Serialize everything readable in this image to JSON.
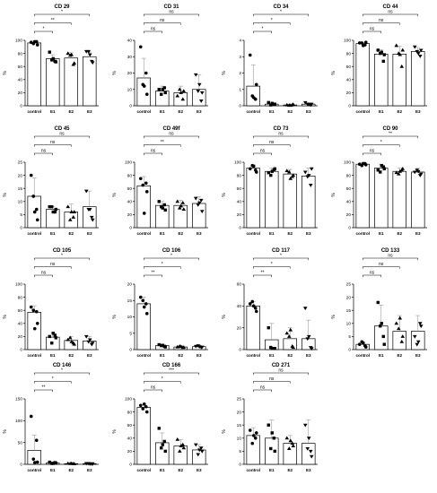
{
  "figure": {
    "ylabel": "%"
  },
  "chart_data": [
    {
      "type": "bar",
      "title": "CD 29",
      "categories": [
        "control",
        "E1",
        "E2",
        "E3"
      ],
      "ylim": [
        0,
        100
      ],
      "yticks": [
        0,
        20,
        40,
        60,
        80,
        100
      ],
      "values": [
        96,
        72,
        73,
        75
      ],
      "errors": [
        3,
        6,
        8,
        7
      ],
      "points": [
        [
          97,
          98,
          95,
          93,
          98
        ],
        [
          82,
          68,
          70,
          67,
          72
        ],
        [
          80,
          63,
          77,
          65,
          78
        ],
        [
          83,
          68,
          83,
          66,
          78
        ]
      ],
      "comparisons": [
        {
          "from": 0,
          "to": 1,
          "label": "*"
        },
        {
          "from": 0,
          "to": 2,
          "label": "**"
        },
        {
          "from": 0,
          "to": 3,
          "label": "*"
        }
      ]
    },
    {
      "type": "bar",
      "title": "CD 31",
      "categories": [
        "control",
        "E1",
        "E2",
        "E3"
      ],
      "ylim": [
        0,
        40
      ],
      "yticks": [
        0,
        10,
        20,
        30,
        40
      ],
      "values": [
        17,
        9,
        8,
        10
      ],
      "errors": [
        12,
        3,
        4,
        9
      ],
      "points": [
        [
          36,
          20,
          13,
          7,
          12
        ],
        [
          10,
          11,
          7,
          8,
          10
        ],
        [
          6,
          4,
          10,
          9,
          8
        ],
        [
          19,
          3,
          9,
          8,
          13
        ]
      ],
      "comparisons": [
        {
          "from": 0,
          "to": 1,
          "label": "ns"
        },
        {
          "from": 0,
          "to": 2,
          "label": "ns"
        },
        {
          "from": 0,
          "to": 3,
          "label": "ns"
        }
      ]
    },
    {
      "type": "bar",
      "title": "CD 34",
      "categories": [
        "control",
        "E1",
        "E2",
        "E3"
      ],
      "ylim": [
        0,
        4
      ],
      "yticks": [
        0,
        1,
        2,
        3,
        4
      ],
      "values": [
        1.2,
        0.1,
        0.05,
        0.1
      ],
      "errors": [
        1.3,
        0.08,
        0.05,
        0.08
      ],
      "points": [
        [
          3.1,
          0.4,
          0.6,
          1.3,
          0.5
        ],
        [
          0.2,
          0.1,
          0.05,
          0.1,
          0.15
        ],
        [
          0.05,
          0.05,
          0.03,
          0.08,
          0.02
        ],
        [
          0.2,
          0.05,
          0.1,
          0.1,
          0.08
        ]
      ],
      "comparisons": [
        {
          "from": 0,
          "to": 1,
          "label": "*"
        },
        {
          "from": 0,
          "to": 2,
          "label": "*"
        },
        {
          "from": 0,
          "to": 3,
          "label": "*"
        }
      ]
    },
    {
      "type": "bar",
      "title": "CD 44",
      "categories": [
        "control",
        "E1",
        "E2",
        "E3"
      ],
      "ylim": [
        0,
        100
      ],
      "yticks": [
        0,
        20,
        40,
        60,
        80,
        100
      ],
      "values": [
        95,
        79,
        79,
        83
      ],
      "errors": [
        2,
        7,
        12,
        6
      ],
      "points": [
        [
          96,
          93,
          96,
          97,
          92
        ],
        [
          85,
          68,
          80,
          78,
          82
        ],
        [
          92,
          60,
          80,
          85,
          78
        ],
        [
          90,
          76,
          83,
          85,
          80
        ]
      ],
      "comparisons": [
        {
          "from": 0,
          "to": 1,
          "label": "ns"
        },
        {
          "from": 0,
          "to": 2,
          "label": "ns"
        },
        {
          "from": 0,
          "to": 3,
          "label": "ns"
        }
      ]
    },
    {
      "type": "bar",
      "title": "CD 45",
      "categories": [
        "control",
        "E1",
        "E2",
        "E3"
      ],
      "ylim": [
        0,
        25
      ],
      "yticks": [
        0,
        5,
        10,
        15,
        20,
        25
      ],
      "values": [
        12,
        7,
        6,
        8
      ],
      "errors": [
        7,
        1,
        3,
        6
      ],
      "points": [
        [
          20,
          7,
          12,
          3,
          6
        ],
        [
          8,
          6,
          8,
          7,
          6
        ],
        [
          8,
          4,
          3,
          6,
          6
        ],
        [
          14,
          4,
          7,
          3,
          7
        ]
      ],
      "comparisons": [
        {
          "from": 0,
          "to": 1,
          "label": "ns"
        },
        {
          "from": 0,
          "to": 2,
          "label": "ns"
        },
        {
          "from": 0,
          "to": 3,
          "label": "ns"
        }
      ]
    },
    {
      "type": "bar",
      "title": "CD 49f",
      "categories": [
        "control",
        "E1",
        "E2",
        "E3"
      ],
      "ylim": [
        0,
        100
      ],
      "yticks": [
        0,
        20,
        40,
        60,
        80,
        100
      ],
      "values": [
        64,
        34,
        34,
        37
      ],
      "errors": [
        14,
        6,
        8,
        10
      ],
      "points": [
        [
          75,
          68,
          65,
          55,
          22
        ],
        [
          40,
          35,
          32,
          27,
          30
        ],
        [
          40,
          38,
          30,
          28,
          33
        ],
        [
          45,
          42,
          35,
          25,
          38
        ]
      ],
      "comparisons": [
        {
          "from": 0,
          "to": 1,
          "label": "ns"
        },
        {
          "from": 0,
          "to": 2,
          "label": "**"
        },
        {
          "from": 0,
          "to": 3,
          "label": "ns"
        }
      ]
    },
    {
      "type": "bar",
      "title": "CD 73",
      "categories": [
        "control",
        "E1",
        "E2",
        "E3"
      ],
      "ylim": [
        0,
        100
      ],
      "yticks": [
        0,
        20,
        40,
        60,
        80,
        100
      ],
      "values": [
        91,
        86,
        82,
        79
      ],
      "errors": [
        5,
        5,
        7,
        12
      ],
      "points": [
        [
          90,
          88,
          95,
          85,
          94
        ],
        [
          84,
          88,
          80,
          90,
          86
        ],
        [
          87,
          78,
          85,
          80,
          75
        ],
        [
          85,
          65,
          78,
          90,
          80
        ]
      ],
      "comparisons": [
        {
          "from": 0,
          "to": 1,
          "label": "ns"
        },
        {
          "from": 0,
          "to": 2,
          "label": "ns"
        },
        {
          "from": 0,
          "to": 3,
          "label": "ns"
        }
      ]
    },
    {
      "type": "bar",
      "title": "CD 90",
      "categories": [
        "control",
        "E1",
        "E2",
        "E3"
      ],
      "ylim": [
        0,
        100
      ],
      "yticks": [
        0,
        20,
        40,
        60,
        80,
        100
      ],
      "values": [
        97,
        91,
        86,
        85
      ],
      "errors": [
        2,
        6,
        5,
        6
      ],
      "points": [
        [
          97,
          98,
          95,
          96,
          98
        ],
        [
          88,
          93,
          85,
          90,
          95
        ],
        [
          84,
          88,
          82,
          90,
          86
        ],
        [
          85,
          80,
          88,
          82,
          86
        ]
      ],
      "comparisons": [
        {
          "from": 0,
          "to": 1,
          "label": "ns"
        },
        {
          "from": 0,
          "to": 2,
          "label": "*"
        },
        {
          "from": 0,
          "to": 3,
          "label": "**"
        }
      ]
    },
    {
      "type": "bar",
      "title": "CD 105",
      "categories": [
        "control",
        "E1",
        "E2",
        "E3"
      ],
      "ylim": [
        0,
        100
      ],
      "yticks": [
        0,
        20,
        40,
        60,
        80,
        100
      ],
      "values": [
        57,
        19,
        14,
        13
      ],
      "errors": [
        10,
        7,
        6,
        7
      ],
      "points": [
        [
          65,
          58,
          60,
          40,
          32
        ],
        [
          20,
          22,
          10,
          18,
          25
        ],
        [
          15,
          10,
          18,
          8,
          12
        ],
        [
          20,
          8,
          12,
          10,
          15
        ]
      ],
      "comparisons": [
        {
          "from": 0,
          "to": 1,
          "label": "ns"
        },
        {
          "from": 0,
          "to": 2,
          "label": "ns"
        },
        {
          "from": 0,
          "to": 3,
          "label": "*"
        }
      ]
    },
    {
      "type": "bar",
      "title": "CD 106",
      "categories": [
        "control",
        "E1",
        "E2",
        "E3"
      ],
      "ylim": [
        0,
        20
      ],
      "yticks": [
        0,
        5,
        10,
        15,
        20
      ],
      "values": [
        14,
        1.2,
        0.8,
        0.9
      ],
      "errors": [
        2,
        0.5,
        0.4,
        0.5
      ],
      "points": [
        [
          16,
          14,
          15,
          11,
          13
        ],
        [
          1.5,
          1,
          1.2,
          0.8,
          1.3
        ],
        [
          0.8,
          0.6,
          1,
          0.7,
          0.9
        ],
        [
          1,
          0.7,
          1.2,
          0.8,
          0.9
        ]
      ],
      "comparisons": [
        {
          "from": 0,
          "to": 1,
          "label": "**"
        },
        {
          "from": 0,
          "to": 2,
          "label": "*"
        },
        {
          "from": 0,
          "to": 3,
          "label": "*"
        }
      ]
    },
    {
      "type": "bar",
      "title": "CD 117",
      "categories": [
        "control",
        "E1",
        "E2",
        "E3"
      ],
      "ylim": [
        0,
        60
      ],
      "yticks": [
        0,
        20,
        40,
        60
      ],
      "values": [
        40,
        9,
        10,
        10
      ],
      "errors": [
        4,
        15,
        10,
        17
      ],
      "points": [
        [
          42,
          38,
          44,
          35,
          40
        ],
        [
          20,
          1,
          2,
          1,
          1
        ],
        [
          15,
          3,
          12,
          2,
          18
        ],
        [
          38,
          2,
          10,
          1,
          12
        ]
      ],
      "comparisons": [
        {
          "from": 0,
          "to": 1,
          "label": "**"
        },
        {
          "from": 0,
          "to": 2,
          "label": "*"
        },
        {
          "from": 0,
          "to": 3,
          "label": "*"
        }
      ]
    },
    {
      "type": "bar",
      "title": "CD 133",
      "categories": [
        "control",
        "E1",
        "E2",
        "E3"
      ],
      "ylim": [
        0,
        25
      ],
      "yticks": [
        0,
        5,
        10,
        15,
        20,
        25
      ],
      "values": [
        2,
        9,
        7,
        7
      ],
      "errors": [
        1,
        8,
        6,
        6
      ],
      "points": [
        [
          2,
          1.5,
          3,
          1,
          2.5
        ],
        [
          18,
          5,
          9,
          2,
          10
        ],
        [
          10,
          3,
          8,
          5,
          12
        ],
        [
          5,
          10,
          2,
          9,
          3
        ]
      ],
      "comparisons": [
        {
          "from": 0,
          "to": 1,
          "label": "ns"
        },
        {
          "from": 0,
          "to": 2,
          "label": "ns"
        },
        {
          "from": 0,
          "to": 3,
          "label": "ns"
        }
      ]
    },
    {
      "type": "bar",
      "title": "CD 146",
      "categories": [
        "control",
        "E1",
        "E2",
        "E3"
      ],
      "ylim": [
        0,
        150
      ],
      "yticks": [
        0,
        50,
        100,
        150
      ],
      "values": [
        32,
        3,
        1.5,
        1.5
      ],
      "errors": [
        35,
        2,
        1,
        1
      ],
      "points": [
        [
          110,
          55,
          12,
          5,
          4
        ],
        [
          5,
          4,
          2,
          3,
          2
        ],
        [
          2,
          1,
          1.5,
          1,
          2
        ],
        [
          2,
          1,
          2,
          1.5,
          1
        ]
      ],
      "comparisons": [
        {
          "from": 0,
          "to": 1,
          "label": "**"
        },
        {
          "from": 0,
          "to": 2,
          "label": "*"
        },
        {
          "from": 0,
          "to": 3,
          "label": "*"
        }
      ]
    },
    {
      "type": "bar",
      "title": "CD 166",
      "categories": [
        "control",
        "E1",
        "E2",
        "E3"
      ],
      "ylim": [
        0,
        100
      ],
      "yticks": [
        0,
        20,
        40,
        60,
        80,
        100
      ],
      "values": [
        87,
        33,
        28,
        22
      ],
      "errors": [
        4,
        15,
        10,
        8
      ],
      "points": [
        [
          90,
          88,
          85,
          80,
          92
        ],
        [
          55,
          35,
          25,
          20,
          30
        ],
        [
          38,
          30,
          20,
          25,
          28
        ],
        [
          30,
          25,
          15,
          20,
          22
        ]
      ],
      "comparisons": [
        {
          "from": 0,
          "to": 1,
          "label": "ns"
        },
        {
          "from": 0,
          "to": 2,
          "label": "*"
        },
        {
          "from": 0,
          "to": 3,
          "label": "***"
        }
      ]
    },
    {
      "type": "bar",
      "title": "CD 271",
      "categories": [
        "control",
        "E1",
        "E2",
        "E3"
      ],
      "ylim": [
        0,
        25
      ],
      "yticks": [
        0,
        5,
        10,
        15,
        20,
        25
      ],
      "values": [
        11,
        10,
        8,
        8
      ],
      "errors": [
        3,
        7,
        3,
        9
      ],
      "points": [
        [
          13,
          10,
          8,
          12,
          11
        ],
        [
          15,
          10,
          6,
          5,
          12
        ],
        [
          10,
          8,
          6,
          7,
          9
        ],
        [
          15,
          5,
          6,
          3,
          10
        ]
      ],
      "comparisons": [
        {
          "from": 0,
          "to": 1,
          "label": "ns"
        },
        {
          "from": 0,
          "to": 2,
          "label": "ns"
        },
        {
          "from": 0,
          "to": 3,
          "label": "ns"
        }
      ]
    }
  ]
}
